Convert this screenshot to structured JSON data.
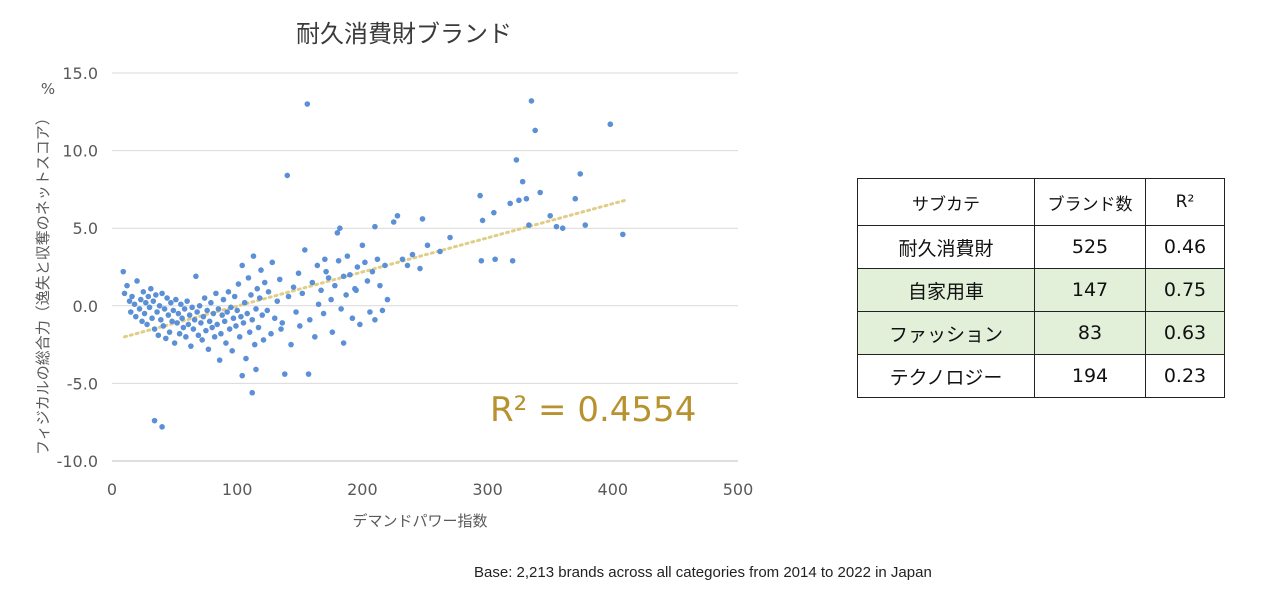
{
  "footnote": "Base: 2,213 brands across all categories from 2014 to 2022 in Japan",
  "chart_data": {
    "type": "scatter",
    "title": "耐久消費財ブランド",
    "xlabel": "デマンドパワー指数",
    "ylabel": "フィジカルの総合力（逸失と収奪のネットスコア）",
    "yunit": "%",
    "xlim": [
      0,
      500
    ],
    "ylim": [
      -10,
      15
    ],
    "xticks": [
      "0",
      "100",
      "200",
      "300",
      "400",
      "500"
    ],
    "yticks": [
      "15.0",
      "10.0",
      "5.0",
      "0.0",
      "-5.0",
      "-10.0"
    ],
    "grid": "horizontal",
    "point_color": "#5b8fd6",
    "trendline": {
      "style": "dotted",
      "color": "#e0ce86",
      "x": [
        10,
        410
      ],
      "y": [
        -2.0,
        6.8
      ]
    },
    "r2_annotation": "R² = 0.4554",
    "points": [
      [
        9,
        2.2
      ],
      [
        10,
        0.8
      ],
      [
        12,
        1.3
      ],
      [
        14,
        0.3
      ],
      [
        15,
        -0.4
      ],
      [
        16,
        0.6
      ],
      [
        18,
        0.1
      ],
      [
        19,
        -0.7
      ],
      [
        20,
        1.6
      ],
      [
        22,
        -0.2
      ],
      [
        23,
        0.4
      ],
      [
        24,
        -1.0
      ],
      [
        25,
        0.9
      ],
      [
        26,
        -0.5
      ],
      [
        27,
        0.2
      ],
      [
        28,
        -1.2
      ],
      [
        29,
        0.6
      ],
      [
        30,
        -0.1
      ],
      [
        31,
        1.1
      ],
      [
        32,
        -0.8
      ],
      [
        33,
        0.3
      ],
      [
        34,
        -1.5
      ],
      [
        35,
        0.7
      ],
      [
        36,
        -0.4
      ],
      [
        37,
        -1.9
      ],
      [
        38,
        0.0
      ],
      [
        39,
        -0.9
      ],
      [
        40,
        0.8
      ],
      [
        41,
        -1.3
      ],
      [
        42,
        -0.2
      ],
      [
        43,
        -2.1
      ],
      [
        44,
        0.5
      ],
      [
        45,
        -0.6
      ],
      [
        46,
        -1.7
      ],
      [
        47,
        0.2
      ],
      [
        48,
        -1.0
      ],
      [
        49,
        -0.3
      ],
      [
        50,
        -2.4
      ],
      [
        51,
        0.4
      ],
      [
        52,
        -1.1
      ],
      [
        53,
        -0.5
      ],
      [
        54,
        -1.8
      ],
      [
        55,
        0.1
      ],
      [
        56,
        -0.8
      ],
      [
        57,
        -1.4
      ],
      [
        58,
        -0.2
      ],
      [
        59,
        -2.0
      ],
      [
        60,
        0.3
      ],
      [
        61,
        -1.2
      ],
      [
        62,
        -0.6
      ],
      [
        63,
        -2.6
      ],
      [
        64,
        -0.1
      ],
      [
        65,
        -1.5
      ],
      [
        66,
        -0.9
      ],
      [
        67,
        1.9
      ],
      [
        68,
        -0.4
      ],
      [
        69,
        -1.9
      ],
      [
        70,
        0.0
      ],
      [
        71,
        -1.1
      ],
      [
        72,
        -2.2
      ],
      [
        73,
        -0.7
      ],
      [
        74,
        0.5
      ],
      [
        75,
        -1.6
      ],
      [
        76,
        -0.3
      ],
      [
        77,
        -2.8
      ],
      [
        78,
        -1.0
      ],
      [
        79,
        0.2
      ],
      [
        80,
        -1.4
      ],
      [
        81,
        -0.5
      ],
      [
        82,
        -2.0
      ],
      [
        83,
        0.8
      ],
      [
        84,
        -1.2
      ],
      [
        85,
        -0.2
      ],
      [
        86,
        -3.5
      ],
      [
        87,
        -1.8
      ],
      [
        88,
        -0.6
      ],
      [
        89,
        0.4
      ],
      [
        90,
        -1.0
      ],
      [
        91,
        -2.4
      ],
      [
        92,
        -0.4
      ],
      [
        93,
        0.9
      ],
      [
        94,
        -1.5
      ],
      [
        95,
        -0.1
      ],
      [
        96,
        -2.9
      ],
      [
        97,
        -0.8
      ],
      [
        98,
        0.6
      ],
      [
        99,
        -1.3
      ],
      [
        100,
        -0.3
      ],
      [
        101,
        1.4
      ],
      [
        102,
        -2.0
      ],
      [
        103,
        -0.7
      ],
      [
        104,
        2.6
      ],
      [
        105,
        -1.1
      ],
      [
        106,
        0.2
      ],
      [
        107,
        -3.4
      ],
      [
        108,
        -0.5
      ],
      [
        109,
        1.8
      ],
      [
        110,
        -1.7
      ],
      [
        111,
        0.7
      ],
      [
        112,
        -0.9
      ],
      [
        113,
        3.2
      ],
      [
        114,
        -2.5
      ],
      [
        115,
        -0.2
      ],
      [
        116,
        1.1
      ],
      [
        117,
        -1.4
      ],
      [
        118,
        0.5
      ],
      [
        119,
        2.3
      ],
      [
        120,
        -0.6
      ],
      [
        121,
        -2.2
      ],
      [
        122,
        1.5
      ],
      [
        124,
        -0.3
      ],
      [
        125,
        0.9
      ],
      [
        127,
        -1.8
      ],
      [
        128,
        2.8
      ],
      [
        130,
        -0.8
      ],
      [
        132,
        0.3
      ],
      [
        134,
        1.7
      ],
      [
        136,
        -1.1
      ],
      [
        138,
        -4.4
      ],
      [
        140,
        8.4
      ],
      [
        141,
        0.6
      ],
      [
        143,
        -2.5
      ],
      [
        145,
        1.2
      ],
      [
        147,
        -0.4
      ],
      [
        149,
        2.1
      ],
      [
        150,
        -1.3
      ],
      [
        152,
        0.8
      ],
      [
        154,
        3.6
      ],
      [
        156,
        13.0
      ],
      [
        157,
        -4.4
      ],
      [
        158,
        -0.9
      ],
      [
        160,
        1.5
      ],
      [
        162,
        -2.0
      ],
      [
        164,
        2.6
      ],
      [
        165,
        0.1
      ],
      [
        167,
        1.0
      ],
      [
        169,
        -0.5
      ],
      [
        171,
        2.2
      ],
      [
        173,
        1.8
      ],
      [
        175,
        0.4
      ],
      [
        176,
        -1.7
      ],
      [
        178,
        1.3
      ],
      [
        180,
        4.7
      ],
      [
        181,
        2.9
      ],
      [
        182,
        5.0
      ],
      [
        183,
        -0.2
      ],
      [
        185,
        1.9
      ],
      [
        187,
        0.7
      ],
      [
        188,
        3.2
      ],
      [
        190,
        2.0
      ],
      [
        192,
        -0.8
      ],
      [
        194,
        1.1
      ],
      [
        196,
        2.5
      ],
      [
        198,
        -1.2
      ],
      [
        200,
        3.9
      ],
      [
        202,
        2.8
      ],
      [
        204,
        1.6
      ],
      [
        206,
        -0.4
      ],
      [
        208,
        2.2
      ],
      [
        210,
        5.1
      ],
      [
        212,
        3.0
      ],
      [
        214,
        1.3
      ],
      [
        216,
        -0.3
      ],
      [
        218,
        2.6
      ],
      [
        220,
        0.4
      ],
      [
        225,
        5.4
      ],
      [
        228,
        5.8
      ],
      [
        232,
        3.0
      ],
      [
        236,
        2.6
      ],
      [
        240,
        3.3
      ],
      [
        246,
        2.4
      ],
      [
        248,
        5.6
      ],
      [
        252,
        3.9
      ],
      [
        262,
        3.5
      ],
      [
        270,
        4.4
      ],
      [
        294,
        7.1
      ],
      [
        295,
        2.9
      ],
      [
        296,
        5.5
      ],
      [
        305,
        6.0
      ],
      [
        306,
        3.0
      ],
      [
        318,
        6.6
      ],
      [
        320,
        2.9
      ],
      [
        323,
        9.4
      ],
      [
        325,
        6.8
      ],
      [
        328,
        8.0
      ],
      [
        331,
        6.9
      ],
      [
        333,
        5.2
      ],
      [
        335,
        13.2
      ],
      [
        338,
        11.3
      ],
      [
        342,
        7.3
      ],
      [
        350,
        5.8
      ],
      [
        355,
        5.1
      ],
      [
        360,
        5.0
      ],
      [
        370,
        6.9
      ],
      [
        374,
        8.5
      ],
      [
        378,
        5.2
      ],
      [
        398,
        11.7
      ],
      [
        408,
        4.6
      ],
      [
        104,
        -4.5
      ],
      [
        112,
        -5.6
      ],
      [
        115,
        -4.1
      ],
      [
        34,
        -7.4
      ],
      [
        40,
        -7.8
      ],
      [
        135,
        -1.5
      ],
      [
        170,
        3.0
      ],
      [
        185,
        -2.4
      ],
      [
        195,
        1.0
      ],
      [
        210,
        -0.9
      ]
    ]
  },
  "table": {
    "headers": [
      "サブカテ",
      "ブランド数",
      "R²"
    ],
    "rows": [
      {
        "subcat": "耐久消費財",
        "count": "525",
        "r2": "0.46"
      },
      {
        "subcat": "自家用車",
        "count": "147",
        "r2": "0.75"
      },
      {
        "subcat": "ファッション",
        "count": "83",
        "r2": "0.63"
      },
      {
        "subcat": "テクノロジー",
        "count": "194",
        "r2": "0.23"
      }
    ]
  }
}
